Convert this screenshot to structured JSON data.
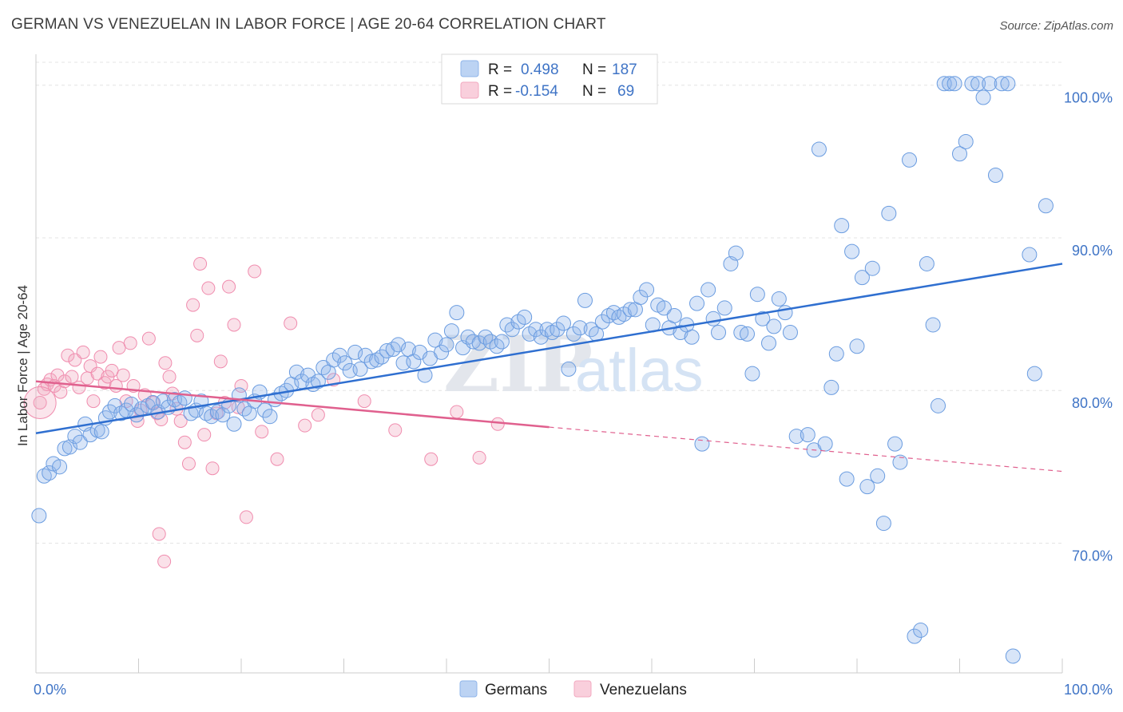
{
  "title": "GERMAN VS VENEZUELAN IN LABOR FORCE | AGE 20-64 CORRELATION CHART",
  "source": "Source: ZipAtlas.com",
  "watermark": {
    "zip": "ZIP",
    "atlas": "atlas"
  },
  "legend": {
    "rows": [
      {
        "r_label": "R =",
        "r_value": "0.498",
        "n_label": "N =",
        "n_value": "187",
        "color": "#8fb5ea"
      },
      {
        "r_label": "R =",
        "r_value": "-0.154",
        "n_label": "N =",
        "n_value": "69",
        "color": "#f2a9c0"
      }
    ]
  },
  "bottom_legend": [
    "Germans",
    "Venezuelans"
  ],
  "chart_data": {
    "type": "scatter",
    "title": "GERMAN VS VENEZUELAN IN LABOR FORCE | AGE 20-64 CORRELATION CHART",
    "xlabel": "",
    "ylabel": "In Labor Force | Age 20-64",
    "xlim": [
      0,
      100
    ],
    "ylim": [
      61.5,
      101.5
    ],
    "x_tick_labels": [
      "0.0%",
      "100.0%"
    ],
    "y_ticks": [
      70,
      80,
      90,
      100
    ],
    "y_tick_labels": [
      "70.0%",
      "80.0%",
      "90.0%",
      "100.0%"
    ],
    "grid": true,
    "legend_position": "top-center",
    "series": [
      {
        "name": "Germans",
        "color": "#6a9ce0",
        "trend": {
          "x": [
            0,
            100
          ],
          "y": [
            77.2,
            88.3
          ],
          "color": "#2f6fd0"
        },
        "points": [
          [
            0.3,
            71.8
          ],
          [
            0.8,
            74.4
          ],
          [
            1.3,
            74.6
          ],
          [
            1.7,
            75.2
          ],
          [
            2.3,
            75.0
          ],
          [
            2.8,
            76.2
          ],
          [
            3.3,
            76.3
          ],
          [
            3.8,
            77.0
          ],
          [
            4.3,
            76.6
          ],
          [
            4.8,
            77.8
          ],
          [
            5.3,
            77.1
          ],
          [
            6.0,
            77.4
          ],
          [
            6.4,
            77.3
          ],
          [
            6.8,
            78.2
          ],
          [
            7.2,
            78.6
          ],
          [
            7.7,
            79.0
          ],
          [
            8.3,
            78.5
          ],
          [
            8.8,
            78.7
          ],
          [
            9.3,
            79.1
          ],
          [
            9.8,
            78.4
          ],
          [
            10.3,
            78.8
          ],
          [
            10.9,
            79.0
          ],
          [
            11.4,
            79.2
          ],
          [
            11.9,
            78.6
          ],
          [
            12.4,
            79.3
          ],
          [
            12.9,
            78.9
          ],
          [
            13.5,
            79.4
          ],
          [
            14.0,
            79.2
          ],
          [
            14.5,
            79.5
          ],
          [
            15.1,
            78.5
          ],
          [
            15.6,
            78.7
          ],
          [
            16.1,
            79.3
          ],
          [
            16.6,
            78.5
          ],
          [
            17.1,
            78.3
          ],
          [
            17.7,
            78.6
          ],
          [
            18.2,
            78.4
          ],
          [
            18.8,
            79.0
          ],
          [
            19.3,
            77.8
          ],
          [
            19.8,
            79.7
          ],
          [
            20.3,
            78.8
          ],
          [
            20.8,
            78.5
          ],
          [
            21.3,
            79.3
          ],
          [
            21.8,
            79.9
          ],
          [
            22.3,
            78.7
          ],
          [
            22.8,
            78.3
          ],
          [
            23.3,
            79.4
          ],
          [
            23.9,
            79.8
          ],
          [
            24.4,
            80.0
          ],
          [
            24.9,
            80.4
          ],
          [
            25.4,
            81.2
          ],
          [
            25.9,
            80.6
          ],
          [
            26.5,
            81.0
          ],
          [
            27.0,
            80.4
          ],
          [
            27.5,
            80.6
          ],
          [
            28.0,
            81.5
          ],
          [
            28.5,
            81.2
          ],
          [
            29.0,
            82.0
          ],
          [
            29.6,
            82.3
          ],
          [
            30.1,
            81.8
          ],
          [
            30.6,
            81.3
          ],
          [
            31.1,
            82.5
          ],
          [
            31.6,
            81.4
          ],
          [
            32.1,
            82.3
          ],
          [
            32.7,
            81.9
          ],
          [
            33.2,
            82.0
          ],
          [
            33.7,
            82.2
          ],
          [
            34.2,
            82.6
          ],
          [
            34.8,
            82.7
          ],
          [
            35.3,
            83.0
          ],
          [
            35.8,
            81.8
          ],
          [
            36.3,
            82.7
          ],
          [
            36.8,
            81.9
          ],
          [
            37.4,
            82.5
          ],
          [
            37.9,
            81.0
          ],
          [
            38.4,
            82.1
          ],
          [
            38.9,
            83.3
          ],
          [
            39.5,
            82.5
          ],
          [
            40.0,
            83.0
          ],
          [
            40.5,
            83.9
          ],
          [
            41.0,
            85.1
          ],
          [
            41.6,
            82.8
          ],
          [
            42.1,
            83.5
          ],
          [
            42.6,
            83.2
          ],
          [
            43.2,
            83.1
          ],
          [
            43.8,
            83.5
          ],
          [
            44.3,
            83.2
          ],
          [
            44.9,
            82.9
          ],
          [
            45.4,
            83.2
          ],
          [
            45.9,
            84.3
          ],
          [
            46.4,
            84.0
          ],
          [
            47.0,
            84.5
          ],
          [
            47.6,
            84.8
          ],
          [
            48.1,
            83.7
          ],
          [
            48.7,
            84.0
          ],
          [
            49.2,
            83.5
          ],
          [
            49.8,
            84.0
          ],
          [
            50.3,
            83.8
          ],
          [
            50.8,
            84.0
          ],
          [
            51.4,
            84.4
          ],
          [
            51.9,
            81.4
          ],
          [
            52.4,
            83.7
          ],
          [
            53.0,
            84.1
          ],
          [
            53.5,
            85.9
          ],
          [
            54.1,
            84.0
          ],
          [
            54.6,
            83.7
          ],
          [
            55.2,
            84.5
          ],
          [
            55.8,
            84.9
          ],
          [
            56.3,
            85.1
          ],
          [
            56.8,
            84.8
          ],
          [
            57.3,
            85.0
          ],
          [
            57.9,
            85.3
          ],
          [
            58.4,
            85.3
          ],
          [
            58.9,
            86.1
          ],
          [
            59.5,
            86.6
          ],
          [
            60.1,
            84.3
          ],
          [
            60.6,
            85.6
          ],
          [
            61.2,
            85.4
          ],
          [
            61.7,
            84.1
          ],
          [
            62.2,
            84.9
          ],
          [
            62.8,
            83.8
          ],
          [
            63.4,
            84.3
          ],
          [
            63.9,
            83.5
          ],
          [
            64.4,
            85.7
          ],
          [
            64.9,
            76.5
          ],
          [
            65.5,
            86.6
          ],
          [
            66.0,
            84.7
          ],
          [
            66.5,
            83.8
          ],
          [
            67.1,
            85.4
          ],
          [
            67.7,
            88.3
          ],
          [
            68.2,
            89.0
          ],
          [
            68.7,
            83.8
          ],
          [
            69.3,
            83.7
          ],
          [
            69.8,
            81.1
          ],
          [
            70.3,
            86.3
          ],
          [
            70.8,
            84.7
          ],
          [
            71.4,
            83.1
          ],
          [
            71.9,
            84.2
          ],
          [
            72.4,
            86.0
          ],
          [
            73.0,
            85.1
          ],
          [
            73.5,
            83.8
          ],
          [
            74.1,
            77.0
          ],
          [
            75.2,
            77.1
          ],
          [
            75.8,
            76.1
          ],
          [
            76.3,
            95.8
          ],
          [
            76.9,
            76.5
          ],
          [
            77.5,
            80.2
          ],
          [
            78.0,
            82.4
          ],
          [
            78.5,
            90.8
          ],
          [
            79.0,
            74.2
          ],
          [
            79.5,
            89.1
          ],
          [
            80.0,
            82.9
          ],
          [
            80.5,
            87.4
          ],
          [
            81.0,
            73.7
          ],
          [
            81.5,
            88.0
          ],
          [
            82.0,
            74.4
          ],
          [
            82.6,
            71.3
          ],
          [
            83.1,
            91.6
          ],
          [
            83.7,
            76.5
          ],
          [
            84.2,
            75.3
          ],
          [
            85.1,
            95.1
          ],
          [
            85.6,
            63.9
          ],
          [
            86.2,
            64.3
          ],
          [
            86.8,
            88.3
          ],
          [
            87.4,
            84.3
          ],
          [
            87.9,
            79.0
          ],
          [
            88.5,
            100.1
          ],
          [
            89.0,
            100.1
          ],
          [
            89.5,
            100.1
          ],
          [
            90.0,
            95.5
          ],
          [
            90.6,
            96.3
          ],
          [
            91.2,
            100.1
          ],
          [
            91.8,
            100.1
          ],
          [
            92.3,
            99.2
          ],
          [
            92.9,
            100.1
          ],
          [
            93.5,
            94.1
          ],
          [
            94.1,
            100.1
          ],
          [
            94.7,
            100.1
          ],
          [
            95.2,
            62.6
          ],
          [
            96.8,
            88.9
          ],
          [
            97.3,
            81.1
          ],
          [
            98.4,
            92.1
          ]
        ]
      },
      {
        "name": "Venezuelans",
        "color": "#f08cae",
        "trend": {
          "x": [
            0,
            50,
            100
          ],
          "y": [
            80.6,
            77.6,
            74.7
          ],
          "color": "#e0608e"
        },
        "points": [
          [
            0.4,
            79.2
          ],
          [
            0.8,
            80.1
          ],
          [
            1.1,
            80.4
          ],
          [
            1.4,
            80.7
          ],
          [
            1.8,
            80.3
          ],
          [
            2.1,
            81.0
          ],
          [
            2.4,
            79.9
          ],
          [
            2.8,
            80.6
          ],
          [
            3.1,
            82.3
          ],
          [
            3.5,
            80.9
          ],
          [
            3.8,
            82.0
          ],
          [
            4.2,
            80.2
          ],
          [
            4.6,
            82.5
          ],
          [
            5.0,
            80.8
          ],
          [
            5.3,
            81.6
          ],
          [
            5.6,
            79.3
          ],
          [
            6.0,
            81.1
          ],
          [
            6.3,
            82.2
          ],
          [
            6.7,
            80.5
          ],
          [
            7.0,
            80.9
          ],
          [
            7.4,
            81.3
          ],
          [
            7.8,
            80.3
          ],
          [
            8.1,
            82.8
          ],
          [
            8.5,
            81.0
          ],
          [
            8.8,
            79.3
          ],
          [
            9.2,
            83.1
          ],
          [
            9.5,
            80.3
          ],
          [
            9.9,
            78.0
          ],
          [
            10.2,
            78.7
          ],
          [
            10.6,
            79.7
          ],
          [
            11.0,
            83.4
          ],
          [
            11.4,
            79.2
          ],
          [
            11.8,
            78.5
          ],
          [
            12.2,
            78.1
          ],
          [
            12.6,
            81.8
          ],
          [
            13.0,
            80.9
          ],
          [
            13.3,
            79.8
          ],
          [
            13.7,
            78.8
          ],
          [
            14.1,
            78.0
          ],
          [
            14.5,
            76.6
          ],
          [
            14.9,
            75.2
          ],
          [
            15.3,
            85.6
          ],
          [
            15.7,
            83.6
          ],
          [
            16.0,
            88.3
          ],
          [
            16.4,
            77.1
          ],
          [
            16.8,
            86.7
          ],
          [
            17.2,
            74.9
          ],
          [
            17.6,
            78.5
          ],
          [
            18.0,
            81.9
          ],
          [
            18.4,
            79.2
          ],
          [
            18.8,
            86.8
          ],
          [
            19.3,
            84.3
          ],
          [
            19.7,
            78.9
          ],
          [
            20.0,
            80.3
          ],
          [
            20.5,
            71.7
          ],
          [
            21.3,
            87.8
          ],
          [
            22.0,
            77.3
          ],
          [
            23.5,
            75.5
          ],
          [
            24.8,
            84.4
          ],
          [
            26.2,
            77.7
          ],
          [
            27.5,
            78.4
          ],
          [
            29.0,
            80.7
          ],
          [
            32.0,
            79.3
          ],
          [
            35.0,
            77.4
          ],
          [
            38.5,
            75.5
          ],
          [
            41.0,
            78.6
          ],
          [
            43.2,
            75.6
          ],
          [
            45.0,
            77.8
          ],
          [
            12.0,
            70.6
          ],
          [
            12.5,
            68.8
          ]
        ]
      }
    ]
  }
}
